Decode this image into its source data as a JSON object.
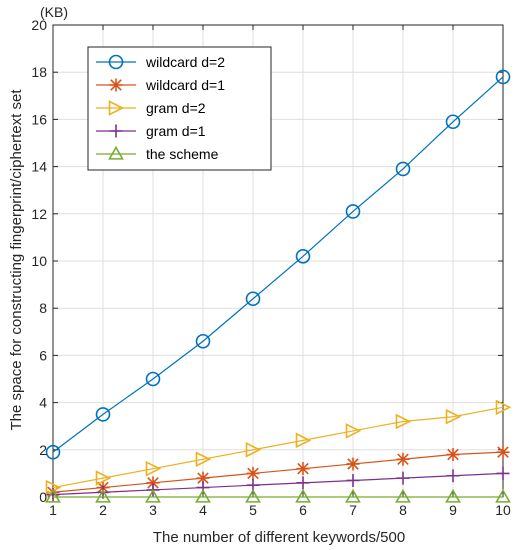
{
  "chart_data": {
    "type": "line",
    "title": "",
    "unit_label": "(KB)",
    "xlabel": "The number of different keywords/500",
    "ylabel": "The space for constructing fingerprint/ciphertext set",
    "x": [
      1,
      2,
      3,
      4,
      5,
      6,
      7,
      8,
      9,
      10
    ],
    "xlim": [
      1,
      10
    ],
    "ylim": [
      0,
      20
    ],
    "xticks": [
      "1",
      "2",
      "3",
      "4",
      "5",
      "6",
      "7",
      "8",
      "9",
      "10"
    ],
    "yticks": [
      "0",
      "2",
      "4",
      "6",
      "8",
      "10",
      "12",
      "14",
      "16",
      "18",
      "20"
    ],
    "grid": true,
    "legend_position": "top-left",
    "series": [
      {
        "name": "wildcard d=2",
        "color": "#0072BD",
        "marker": "circle",
        "values": [
          1.9,
          3.5,
          5.0,
          6.6,
          8.4,
          10.2,
          12.1,
          13.9,
          15.9,
          17.8
        ]
      },
      {
        "name": "wildcard d=1",
        "color": "#D95319",
        "marker": "asterisk",
        "values": [
          0.2,
          0.4,
          0.6,
          0.8,
          1.0,
          1.2,
          1.4,
          1.6,
          1.8,
          1.9
        ]
      },
      {
        "name": "gram d=2",
        "color": "#EDB120",
        "marker": "triangle-right",
        "values": [
          0.4,
          0.8,
          1.2,
          1.6,
          2.0,
          2.4,
          2.8,
          3.2,
          3.4,
          3.8
        ]
      },
      {
        "name": "gram d=1",
        "color": "#7E2F8E",
        "marker": "plus",
        "values": [
          0.1,
          0.2,
          0.3,
          0.4,
          0.5,
          0.6,
          0.7,
          0.8,
          0.9,
          1.0
        ]
      },
      {
        "name": "the scheme",
        "color": "#77AC30",
        "marker": "triangle-up",
        "values": [
          0.0,
          0.0,
          0.0,
          0.0,
          0.0,
          0.0,
          0.0,
          0.0,
          0.0,
          0.0
        ]
      }
    ]
  }
}
